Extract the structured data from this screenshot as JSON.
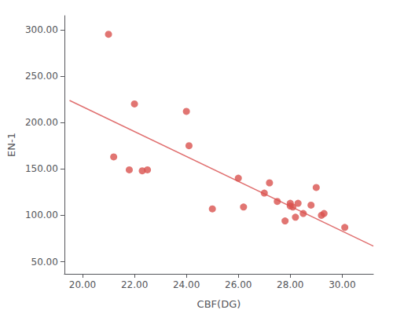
{
  "chart_data": {
    "type": "scatter",
    "xlabel": "CBF(DG)",
    "ylabel": "EN-1",
    "xlim": [
      19.3,
      31.2
    ],
    "ylim": [
      37,
      315
    ],
    "xticks": [
      {
        "value": 20,
        "label": "20.00"
      },
      {
        "value": 22,
        "label": "22.00"
      },
      {
        "value": 24,
        "label": "24.00"
      },
      {
        "value": 26,
        "label": "26.00"
      },
      {
        "value": 28,
        "label": "28.00"
      },
      {
        "value": 30,
        "label": "30.00"
      }
    ],
    "yticks": [
      {
        "value": 50,
        "label": "50.00"
      },
      {
        "value": 100,
        "label": "100.00"
      },
      {
        "value": 150,
        "label": "150.00"
      },
      {
        "value": 200,
        "label": "200.00"
      },
      {
        "value": 250,
        "label": "250.00"
      },
      {
        "value": 300,
        "label": "300.00"
      }
    ],
    "grid": false,
    "series": [
      {
        "type": "scatter",
        "color": "#d9534f",
        "x": [
          21.0,
          21.2,
          21.8,
          22.0,
          22.3,
          22.5,
          24.0,
          24.1,
          25.0,
          26.0,
          26.2,
          27.0,
          27.2,
          27.5,
          27.8,
          28.0,
          28.0,
          28.1,
          28.2,
          28.3,
          28.5,
          28.8,
          29.0,
          29.2,
          29.3,
          30.1
        ],
        "values": [
          295,
          163,
          149,
          220,
          148,
          149,
          212,
          175,
          107,
          140,
          109,
          124,
          135,
          115,
          94,
          113,
          110,
          109,
          98,
          113,
          102,
          111,
          130,
          100,
          102,
          87
        ]
      },
      {
        "type": "line",
        "color": "#e07070",
        "x": [
          19.5,
          31.2
        ],
        "values": [
          223.7,
          66.92
        ]
      }
    ]
  }
}
